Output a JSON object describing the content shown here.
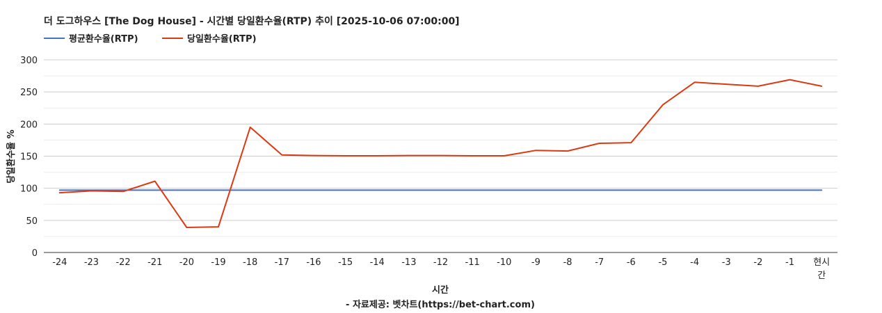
{
  "chart_data": {
    "type": "line",
    "title": "더 도그하우스 [The Dog House] - 시간별 당일환수율(RTP) 추이 [2025-10-06 07:00:00]",
    "xlabel": "시간",
    "ylabel": "당일환수율 %",
    "source": "- 자료제공: 벳차트(https://bet-chart.com)",
    "categories": [
      "-24",
      "-23",
      "-22",
      "-21",
      "-20",
      "-19",
      "-18",
      "-17",
      "-16",
      "-15",
      "-14",
      "-13",
      "-12",
      "-11",
      "-10",
      "-9",
      "-8",
      "-7",
      "-6",
      "-5",
      "-4",
      "-3",
      "-2",
      "-1",
      "현시간"
    ],
    "ylim": [
      0,
      300
    ],
    "yticks": [
      0,
      50,
      100,
      150,
      200,
      250,
      300
    ],
    "grid": true,
    "legend_position": "top-left",
    "series": [
      {
        "name": "평균환수율(RTP)",
        "color": "#4472C4",
        "values": [
          97,
          97,
          97,
          97,
          97,
          97,
          97,
          97,
          97,
          97,
          97,
          97,
          97,
          97,
          97,
          97,
          97,
          97,
          97,
          97,
          97,
          97,
          97,
          97,
          97
        ]
      },
      {
        "name": "당일환수율(RTP)",
        "color": "#DC3912",
        "values": [
          93,
          96,
          95,
          111,
          39,
          40,
          195,
          152,
          151,
          150.5,
          150.5,
          151,
          151,
          150.5,
          150.5,
          159,
          158,
          170,
          171,
          230,
          265,
          262,
          259,
          269,
          259
        ]
      }
    ]
  }
}
